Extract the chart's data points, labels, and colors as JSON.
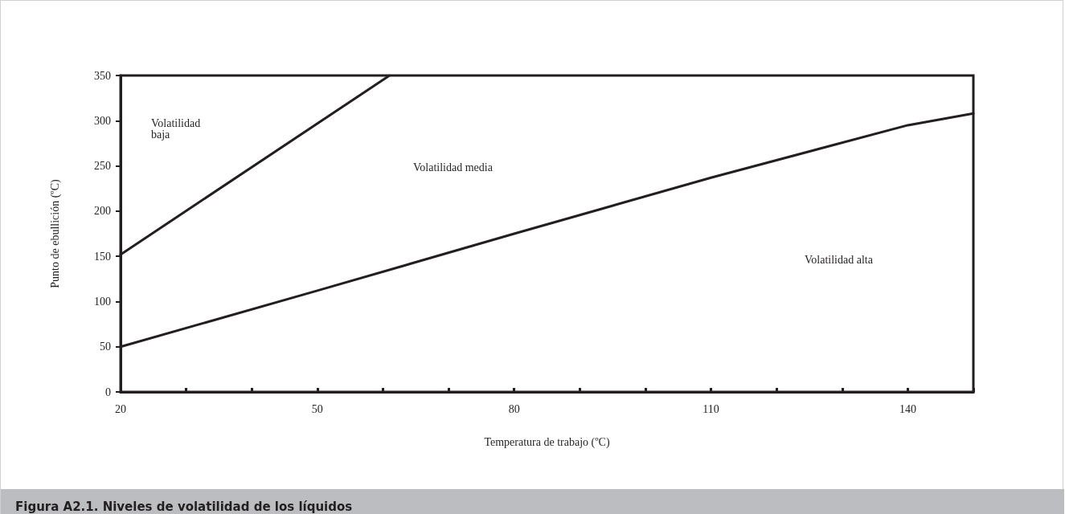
{
  "chart_data": {
    "type": "line",
    "title": "Figura A2.1. Niveles de volatilidad de los líquidos",
    "xlabel": "Temperatura de trabajo (ºC)",
    "ylabel": "Punto de ebullición (ºC)",
    "series": [
      {
        "color": "#231f20",
        "x": [
          20,
          61
        ],
        "values": [
          152,
          350
        ]
      },
      {
        "color": "#231f20",
        "x": [
          20,
          50,
          80,
          110,
          140,
          150
        ],
        "values": [
          50,
          112,
          175,
          237,
          295,
          308
        ]
      }
    ],
    "xlim": [
      20,
      150
    ],
    "xticks": [
      20,
      {
        "value": 30,
        "label": null
      },
      {
        "value": 40,
        "label": null
      },
      50,
      {
        "value": 60,
        "label": null
      },
      {
        "value": 70,
        "label": null
      },
      80,
      {
        "value": 90,
        "label": null
      },
      {
        "value": 100,
        "label": null
      },
      110,
      {
        "value": 120,
        "label": null
      },
      {
        "value": 130,
        "label": null
      },
      140,
      {
        "value": 150,
        "label": null
      }
    ],
    "ylim": [
      0,
      350
    ],
    "yticks": [
      0,
      50,
      100,
      150,
      200,
      250,
      300,
      350
    ],
    "annotations": [
      "Volatilidad baja",
      "Volatilidad media",
      "Volatilidad alta"
    ]
  }
}
